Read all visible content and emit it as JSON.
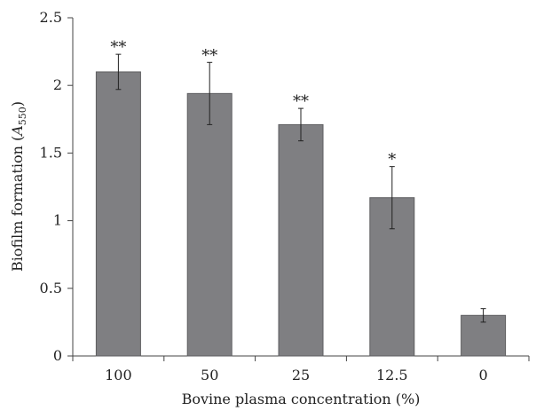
{
  "chart_data": {
    "type": "bar",
    "categories": [
      "100",
      "50",
      "25",
      "12.5",
      "0"
    ],
    "values": [
      2.1,
      1.94,
      1.71,
      1.17,
      0.3
    ],
    "errors": [
      0.13,
      0.23,
      0.12,
      0.23,
      0.05
    ],
    "significance": [
      "**",
      "**",
      "**",
      "*",
      ""
    ],
    "ylim": [
      0,
      2.5
    ],
    "yticks": [
      "0",
      "0.5",
      "1",
      "1.5",
      "2",
      "2.5"
    ],
    "xlabel": "Bovine plasma concentration (%)",
    "ylabel_main": "Biofilm formation (",
    "ylabel_var": "A",
    "ylabel_sub": "550",
    "ylabel_close": ")",
    "grid": false,
    "bar_color": "#7f7f82"
  }
}
